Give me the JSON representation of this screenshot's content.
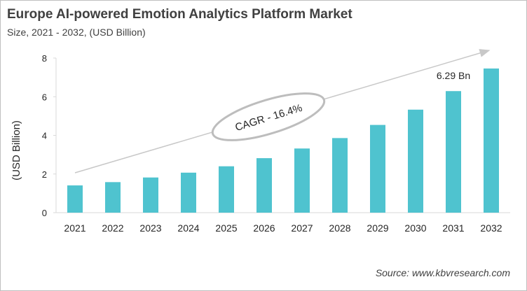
{
  "title": "Europe AI-powered Emotion Analytics Platform Market",
  "subtitle": "Size, 2021 - 2032, (USD Billion)",
  "source": "Source: www.kbvresearch.com",
  "chart_data": {
    "type": "bar",
    "title": "Europe AI-powered Emotion Analytics Platform Market",
    "ylabel": "(USD Billion)",
    "xlabel": "",
    "ylim": [
      0,
      8
    ],
    "yticks": [
      0,
      2,
      4,
      6,
      8
    ],
    "grid": false,
    "categories": [
      "2021",
      "2022",
      "2023",
      "2024",
      "2025",
      "2026",
      "2027",
      "2028",
      "2029",
      "2030",
      "2031",
      "2032"
    ],
    "values": [
      1.41,
      1.58,
      1.82,
      2.07,
      2.4,
      2.82,
      3.32,
      3.86,
      4.54,
      5.33,
      6.29,
      7.46
    ],
    "bar_color": "#4fc3cf",
    "annotations": {
      "cagr": "CAGR - 16.4%",
      "value_label": "6.29 Bn",
      "value_label_category": "2031"
    }
  }
}
